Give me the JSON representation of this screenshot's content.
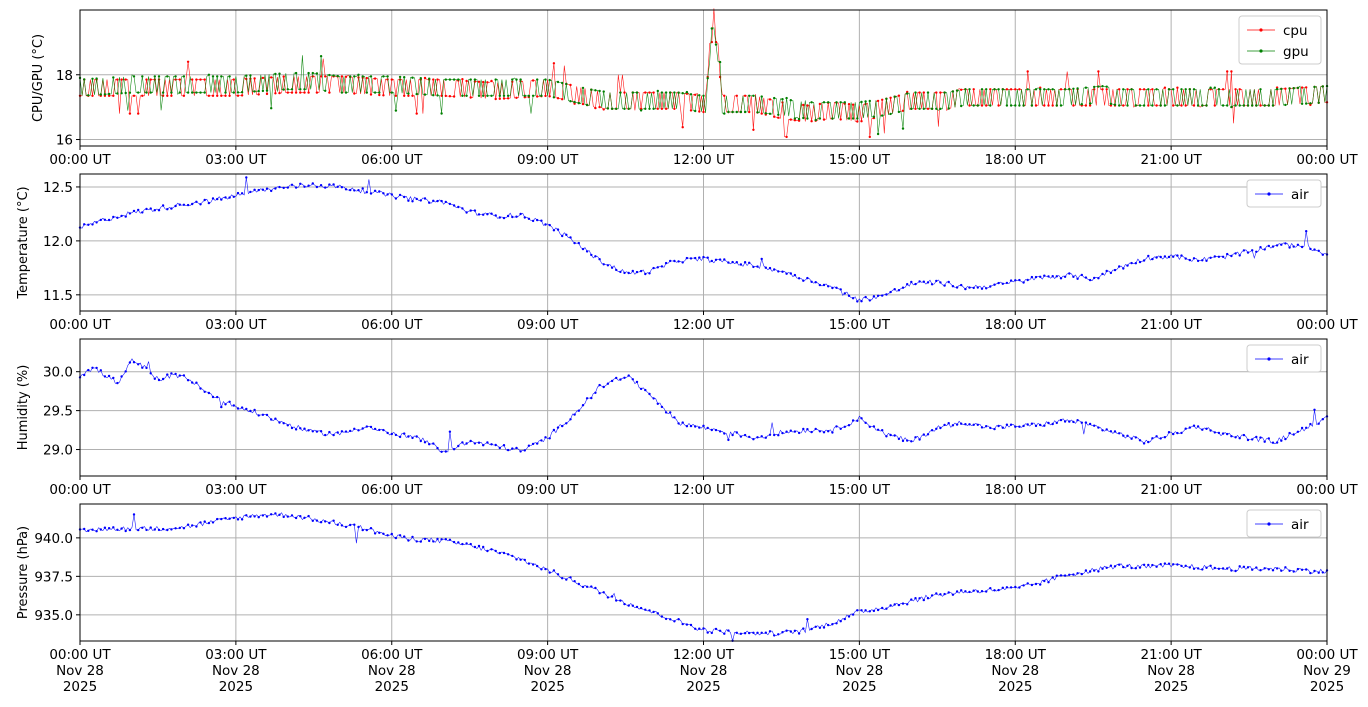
{
  "x_ticks": [
    "00:00 UT",
    "03:00 UT",
    "06:00 UT",
    "09:00 UT",
    "12:00 UT",
    "15:00 UT",
    "18:00 UT",
    "21:00 UT",
    "00:00 UT"
  ],
  "x_tick_dates": [
    [
      "Nov 28",
      "2025"
    ],
    [
      "Nov 28",
      "2025"
    ],
    [
      "Nov 28",
      "2025"
    ],
    [
      "Nov 28",
      "2025"
    ],
    [
      "Nov 28",
      "2025"
    ],
    [
      "Nov 28",
      "2025"
    ],
    [
      "Nov 28",
      "2025"
    ],
    [
      "Nov 28",
      "2025"
    ],
    [
      "Nov 29",
      "2025"
    ]
  ],
  "chart_data": [
    {
      "type": "line",
      "ylabel": "CPU/GPU (°C)",
      "ylim": [
        15.8,
        20.0
      ],
      "yticks": [
        16,
        18
      ],
      "xlim": [
        "2025-11-28T00:00",
        "2025-11-29T00:00"
      ],
      "grid": true,
      "legend": "top-right",
      "series": [
        {
          "name": "cpu",
          "color": "#ff0000",
          "x": [
            0,
            1,
            2,
            3,
            4,
            4.5,
            5,
            6,
            7,
            8,
            9,
            9.8,
            10.2,
            11,
            11.5,
            12,
            12.2,
            12.4,
            13,
            13.5,
            14,
            14.5,
            15,
            15.5,
            16,
            16.7,
            17,
            18,
            19,
            19.7,
            20,
            21,
            22,
            23,
            24
          ],
          "values": [
            17.6,
            17.6,
            17.6,
            17.6,
            17.7,
            17.7,
            17.7,
            17.6,
            17.6,
            17.5,
            17.6,
            17.3,
            17.2,
            17.2,
            17.2,
            17.1,
            19.8,
            17.1,
            17.1,
            16.9,
            16.8,
            16.9,
            16.8,
            17.0,
            17.2,
            17.2,
            17.3,
            17.3,
            17.3,
            17.3,
            17.3,
            17.3,
            17.3,
            17.3,
            17.4
          ]
        },
        {
          "name": "gpu",
          "color": "#008000",
          "x": [
            0,
            1,
            2,
            3,
            4,
            4.5,
            5,
            6,
            7,
            8,
            9,
            9.8,
            10.2,
            11,
            11.5,
            12,
            12.2,
            12.4,
            13,
            13.5,
            14,
            14.5,
            15,
            15.5,
            16,
            16.7,
            17,
            18,
            19,
            19.7,
            20,
            21,
            22,
            23,
            24
          ],
          "values": [
            17.6,
            17.7,
            17.7,
            17.7,
            17.8,
            17.8,
            17.7,
            17.7,
            17.6,
            17.6,
            17.6,
            17.3,
            17.2,
            17.2,
            17.2,
            17.1,
            19.7,
            17.1,
            17.1,
            17.0,
            16.9,
            16.9,
            16.9,
            17.0,
            17.2,
            17.2,
            17.3,
            17.3,
            17.3,
            17.4,
            17.3,
            17.3,
            17.3,
            17.3,
            17.4
          ]
        }
      ]
    },
    {
      "type": "line",
      "ylabel": "Temperature (°C)",
      "ylim": [
        11.35,
        12.62
      ],
      "yticks": [
        11.5,
        12.0,
        12.5
      ],
      "xlim": [
        "2025-11-28T00:00",
        "2025-11-29T00:00"
      ],
      "grid": true,
      "legend": "top-right",
      "series": [
        {
          "name": "air",
          "color": "#0000ff",
          "x": [
            0,
            0.5,
            1,
            1.5,
            2,
            2.5,
            3,
            3.5,
            4,
            4.5,
            5,
            5.5,
            6,
            6.5,
            7,
            7.5,
            8,
            8.5,
            9,
            9.5,
            10,
            10.5,
            11,
            11.5,
            12,
            12.5,
            13,
            13.5,
            14,
            14.5,
            15,
            15.5,
            16,
            16.5,
            17,
            17.5,
            18,
            18.5,
            19,
            19.5,
            20,
            20.5,
            21,
            21.5,
            22,
            22.5,
            23,
            23.5,
            24
          ],
          "values": [
            12.12,
            12.2,
            12.26,
            12.3,
            12.34,
            12.37,
            12.42,
            12.47,
            12.5,
            12.52,
            12.5,
            12.46,
            12.42,
            12.38,
            12.36,
            12.27,
            12.23,
            12.24,
            12.15,
            12.0,
            11.82,
            11.7,
            11.72,
            11.82,
            11.83,
            11.8,
            11.77,
            11.72,
            11.64,
            11.57,
            11.45,
            11.5,
            11.6,
            11.62,
            11.57,
            11.58,
            11.62,
            11.66,
            11.68,
            11.65,
            11.75,
            11.84,
            11.86,
            11.82,
            11.85,
            11.9,
            11.96,
            11.96,
            11.88
          ]
        }
      ]
    },
    {
      "type": "line",
      "ylabel": "Humidity (%)",
      "ylim": [
        28.66,
        30.42
      ],
      "yticks": [
        29.0,
        29.5,
        30.0
      ],
      "xlim": [
        "2025-11-28T00:00",
        "2025-11-29T00:00"
      ],
      "grid": true,
      "legend": "top-right",
      "series": [
        {
          "name": "air",
          "color": "#0000ff",
          "x": [
            0,
            0.25,
            0.5,
            0.75,
            1,
            1.25,
            1.5,
            1.75,
            2,
            2.5,
            3,
            3.5,
            4,
            4.5,
            5,
            5.5,
            6,
            6.5,
            7,
            7.5,
            8,
            8.5,
            9,
            9.5,
            10,
            10.5,
            11,
            11.5,
            12,
            12.5,
            13,
            13.5,
            14,
            14.5,
            15,
            15.5,
            16,
            16.5,
            17,
            17.5,
            18,
            18.5,
            19,
            19.5,
            20,
            20.5,
            21,
            21.5,
            22,
            22.5,
            23,
            23.5,
            24
          ],
          "values": [
            29.95,
            30.05,
            29.95,
            29.85,
            30.15,
            30.05,
            29.9,
            29.95,
            29.95,
            29.7,
            29.55,
            29.45,
            29.32,
            29.22,
            29.2,
            29.3,
            29.2,
            29.15,
            28.98,
            29.1,
            29.05,
            28.98,
            29.15,
            29.45,
            29.8,
            29.95,
            29.7,
            29.35,
            29.28,
            29.22,
            29.15,
            29.22,
            29.25,
            29.25,
            29.4,
            29.2,
            29.1,
            29.28,
            29.35,
            29.28,
            29.3,
            29.32,
            29.38,
            29.3,
            29.2,
            29.1,
            29.2,
            29.3,
            29.2,
            29.15,
            29.1,
            29.25,
            29.4
          ]
        }
      ]
    },
    {
      "type": "line",
      "ylabel": "Pressure (hPa)",
      "ylim": [
        933.3,
        942.2
      ],
      "yticks": [
        935.0,
        937.5,
        940.0
      ],
      "xlim": [
        "2025-11-28T00:00",
        "2025-11-29T00:00"
      ],
      "grid": true,
      "legend": "top-right",
      "series": [
        {
          "name": "air",
          "color": "#0000ff",
          "x": [
            0,
            0.5,
            1,
            1.5,
            2,
            2.5,
            3,
            3.5,
            4,
            4.5,
            5,
            5.5,
            6,
            6.5,
            7,
            7.5,
            8,
            8.5,
            9,
            9.5,
            10,
            10.5,
            11,
            11.5,
            12,
            12.5,
            13,
            13.5,
            14,
            14.5,
            15,
            15.5,
            16,
            16.5,
            17,
            17.5,
            18,
            18.5,
            19,
            19.5,
            20,
            20.5,
            21,
            21.5,
            22,
            22.5,
            23,
            23.5,
            24
          ],
          "values": [
            940.4,
            940.6,
            940.6,
            940.6,
            940.7,
            941.0,
            941.3,
            941.5,
            941.5,
            941.2,
            940.9,
            940.6,
            940.1,
            939.9,
            939.8,
            939.5,
            939.1,
            938.6,
            937.9,
            937.2,
            936.5,
            935.8,
            935.2,
            934.6,
            934.0,
            933.9,
            933.8,
            933.8,
            934.0,
            934.5,
            935.2,
            935.5,
            935.9,
            936.3,
            936.5,
            936.6,
            936.7,
            937.1,
            937.6,
            937.9,
            938.2,
            938.1,
            938.2,
            938.1,
            938.0,
            938.0,
            938.0,
            937.9,
            937.8
          ]
        }
      ]
    }
  ]
}
